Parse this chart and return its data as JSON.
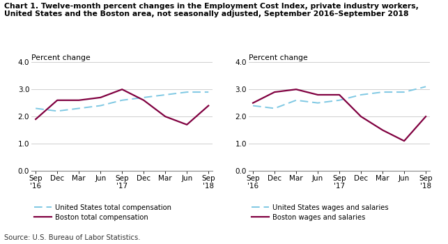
{
  "title_line1": "Chart 1. Twelve-month percent changes in the Employment Cost Index, private industry workers,",
  "title_line2": "United States and the Boston area, not seasonally adjusted, September 2016–September 2018",
  "ylabel": "Percent change",
  "source": "Source: U.S. Bureau of Labor Statistics.",
  "x_labels": [
    "Sep\n'16",
    "Dec",
    "Mar",
    "Jun",
    "Sep\n'17",
    "Dec",
    "Mar",
    "Jun",
    "Sep\n'18"
  ],
  "ylim": [
    0.0,
    4.0
  ],
  "yticks": [
    0.0,
    1.0,
    2.0,
    3.0,
    4.0
  ],
  "left_us": [
    2.3,
    2.2,
    2.3,
    2.4,
    2.6,
    2.7,
    2.8,
    2.9,
    2.9
  ],
  "left_boston": [
    1.9,
    2.6,
    2.6,
    2.7,
    3.0,
    2.6,
    2.0,
    1.7,
    2.4
  ],
  "right_us": [
    2.4,
    2.3,
    2.6,
    2.5,
    2.6,
    2.8,
    2.9,
    2.9,
    3.1
  ],
  "right_boston": [
    2.5,
    2.9,
    3.0,
    2.8,
    2.8,
    2.0,
    1.5,
    1.1,
    2.0
  ],
  "us_color": "#7ec8e3",
  "boston_color": "#800040",
  "left_legend_us": "United States total compensation",
  "left_legend_boston": "Boston total compensation",
  "right_legend_us": "United States wages and salaries",
  "right_legend_boston": "Boston wages and salaries",
  "grid_color": "#c8c8c8",
  "background_color": "#ffffff"
}
